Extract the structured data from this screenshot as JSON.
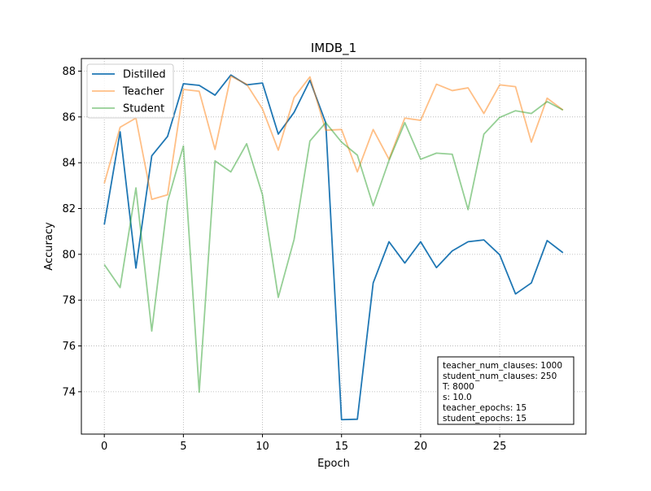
{
  "chart_data": {
    "type": "line",
    "title": "IMDB_1",
    "xlabel": "Epoch",
    "ylabel": "Accuracy",
    "xlim": [
      -1.45,
      30.45
    ],
    "ylim": [
      72.15,
      88.55
    ],
    "xticks": [
      0,
      5,
      10,
      15,
      20,
      25
    ],
    "yticks": [
      74,
      76,
      78,
      80,
      82,
      84,
      86,
      88
    ],
    "grid": true,
    "legend_position": "top-left",
    "x": [
      0,
      1,
      2,
      3,
      4,
      5,
      6,
      7,
      8,
      9,
      10,
      11,
      12,
      13,
      14,
      15,
      16,
      17,
      18,
      19,
      20,
      21,
      22,
      23,
      24,
      25,
      26,
      27,
      28,
      29
    ],
    "series": [
      {
        "name": "Distilled",
        "color": "#1f77b4",
        "opacity": 1.0,
        "values": [
          81.3,
          85.35,
          79.4,
          84.3,
          85.15,
          87.45,
          87.38,
          86.95,
          87.83,
          87.4,
          87.48,
          85.25,
          86.2,
          87.6,
          85.75,
          72.78,
          72.8,
          78.75,
          80.55,
          79.62,
          80.55,
          79.42,
          80.15,
          80.55,
          80.63,
          79.98,
          78.27,
          78.75,
          80.6,
          80.07
        ]
      },
      {
        "name": "Teacher",
        "color": "#ff7f0e",
        "opacity": 0.5,
        "values": [
          83.1,
          85.55,
          85.95,
          82.4,
          82.6,
          87.2,
          87.12,
          84.58,
          87.78,
          87.43,
          86.35,
          84.55,
          86.85,
          87.75,
          85.42,
          85.45,
          83.6,
          85.45,
          84.15,
          85.95,
          85.85,
          87.43,
          87.15,
          87.27,
          86.15,
          87.4,
          87.32,
          84.9,
          86.82,
          86.3
        ]
      },
      {
        "name": "Student",
        "color": "#2ca02c",
        "opacity": 0.5,
        "values": [
          79.55,
          78.55,
          82.9,
          76.65,
          82.3,
          84.73,
          73.98,
          84.08,
          83.6,
          84.83,
          82.6,
          78.12,
          80.65,
          84.95,
          85.75,
          84.9,
          84.33,
          82.12,
          84.1,
          85.75,
          84.15,
          84.42,
          84.37,
          81.95,
          85.25,
          85.98,
          86.27,
          86.15,
          86.67,
          86.3
        ]
      }
    ]
  },
  "info_box": {
    "lines": [
      "teacher_num_clauses: 1000",
      "student_num_clauses: 250",
      "T: 8000",
      "s: 10.0",
      "teacher_epochs: 15",
      "student_epochs: 15"
    ]
  }
}
